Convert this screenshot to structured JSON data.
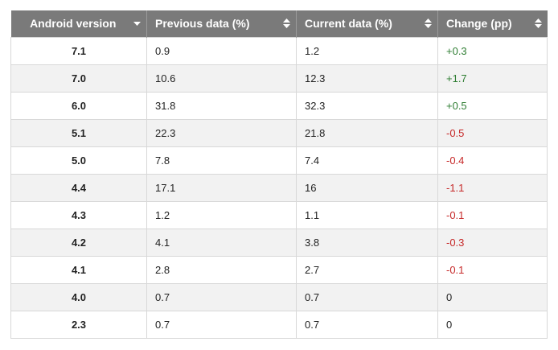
{
  "table": {
    "headers": [
      "Android version",
      "Previous data (%)",
      "Current data (%)",
      "Change (pp)"
    ],
    "sort_icons": [
      "sort-desc-icon",
      "sort-icon",
      "sort-icon",
      "sort-icon"
    ],
    "rows": [
      {
        "version": "7.1",
        "previous": "0.9",
        "current": "1.2",
        "change": "+0.3",
        "trend": "pos"
      },
      {
        "version": "7.0",
        "previous": "10.6",
        "current": "12.3",
        "change": "+1.7",
        "trend": "pos"
      },
      {
        "version": "6.0",
        "previous": "31.8",
        "current": "32.3",
        "change": "+0.5",
        "trend": "pos"
      },
      {
        "version": "5.1",
        "previous": "22.3",
        "current": "21.8",
        "change": "-0.5",
        "trend": "neg"
      },
      {
        "version": "5.0",
        "previous": "7.8",
        "current": "7.4",
        "change": "-0.4",
        "trend": "neg"
      },
      {
        "version": "4.4",
        "previous": "17.1",
        "current": "16",
        "change": "-1.1",
        "trend": "neg"
      },
      {
        "version": "4.3",
        "previous": "1.2",
        "current": "1.1",
        "change": "-0.1",
        "trend": "neg"
      },
      {
        "version": "4.2",
        "previous": "4.1",
        "current": "3.8",
        "change": "-0.3",
        "trend": "neg"
      },
      {
        "version": "4.1",
        "previous": "2.8",
        "current": "2.7",
        "change": "-0.1",
        "trend": "neg"
      },
      {
        "version": "4.0",
        "previous": "0.7",
        "current": "0.7",
        "change": "0",
        "trend": "zero"
      },
      {
        "version": "2.3",
        "previous": "0.7",
        "current": "0.7",
        "change": "0",
        "trend": "zero"
      }
    ]
  },
  "colors": {
    "header_bg": "#7a7a7a",
    "positive": "#2e7d32",
    "negative": "#c62828",
    "stripe": "#f2f2f2"
  }
}
